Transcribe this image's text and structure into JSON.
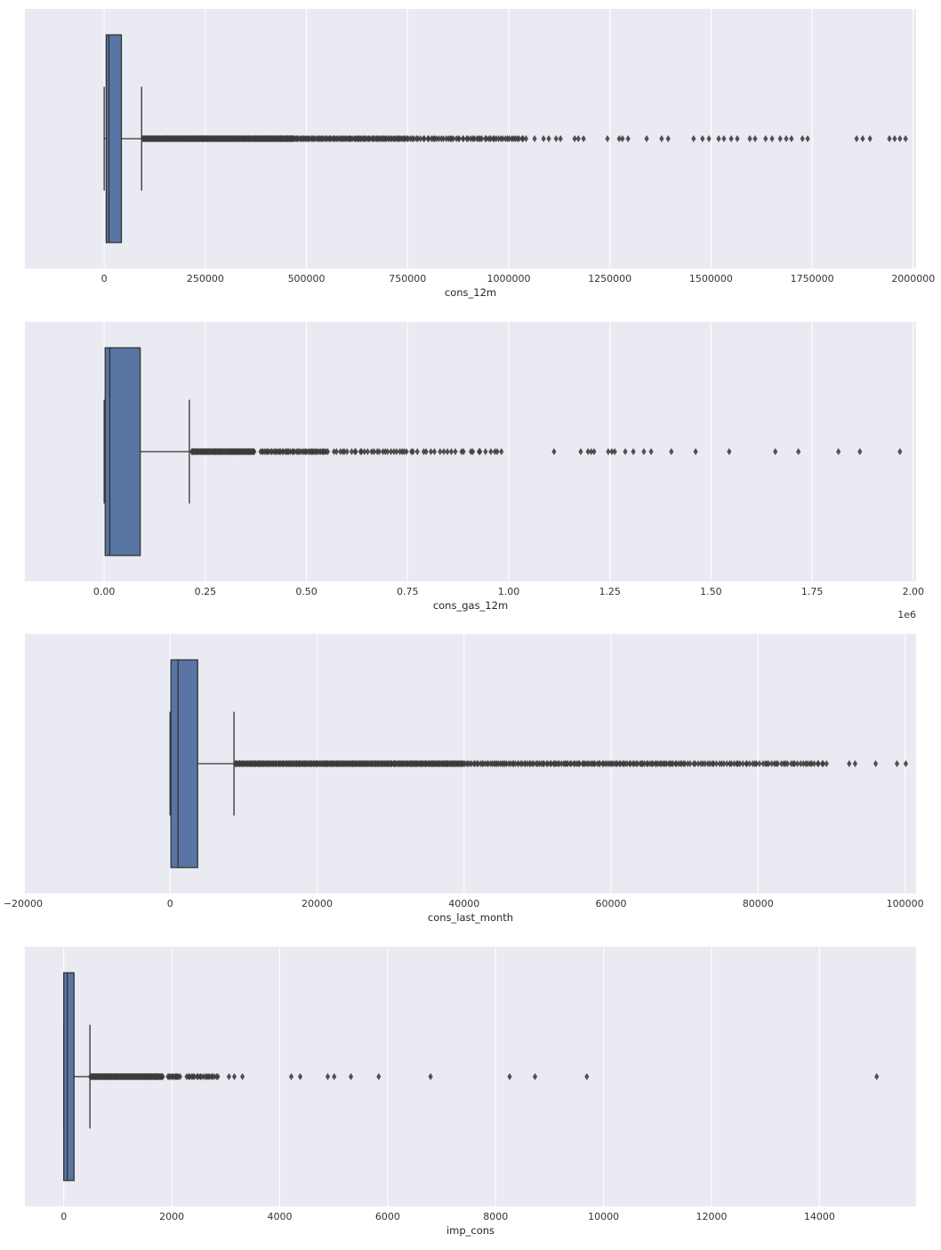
{
  "figure": {
    "background": "#ffffff"
  },
  "style": {
    "axes_bg": "#eaeaf2",
    "grid_color": "#ffffff",
    "box_fill": "#5875a4",
    "line_color": "#333333",
    "flier_color": "#3b3b3b",
    "tick_color": "#333333",
    "label_color": "#262626"
  },
  "chart_data": [
    {
      "type": "box",
      "orientation": "horizontal",
      "xlabel": "cons_12m",
      "xlim": [
        -196000,
        2007000
      ],
      "grid": true,
      "ticks": [
        0,
        250000,
        500000,
        750000,
        1000000,
        1250000,
        1500000,
        1750000,
        2000000
      ],
      "tick_labels": [
        "0",
        "250000",
        "500000",
        "750000",
        "1000000",
        "1250000",
        "1500000",
        "1750000",
        "2000000"
      ],
      "offset_text": "",
      "box": {
        "whisker_low": 0,
        "q1": 5000,
        "median": 11700,
        "q3": 42500,
        "whisker_high": 92500
      },
      "outlier_clusters": [
        {
          "from": 95000,
          "to": 470000,
          "count": 235
        },
        {
          "from": 470000,
          "to": 750000,
          "count": 90
        },
        {
          "from": 750000,
          "to": 1045000,
          "count": 58
        }
      ],
      "outliers": [
        1064000,
        1086000,
        1099000,
        1117000,
        1128000,
        1163000,
        1172000,
        1185000,
        1244000,
        1273000,
        1281000,
        1295000,
        1341000,
        1378000,
        1394000,
        1457000,
        1479000,
        1495000,
        1519000,
        1532000,
        1550000,
        1565000,
        1596000,
        1609000,
        1635000,
        1651000,
        1671000,
        1686000,
        1699000,
        1726000,
        1739000,
        1860000,
        1875000,
        1893000,
        1941000,
        1954000,
        1967000,
        1981000
      ]
    },
    {
      "type": "box",
      "orientation": "horizontal",
      "xlabel": "cons_gas_12m",
      "xlim": [
        -196000,
        2007000
      ],
      "grid": true,
      "ticks": [
        0,
        250000,
        500000,
        750000,
        1000000,
        1250000,
        1500000,
        1750000,
        2000000
      ],
      "tick_labels": [
        "0.00",
        "0.25",
        "0.50",
        "0.75",
        "1.00",
        "1.25",
        "1.50",
        "1.75",
        "2.00"
      ],
      "offset_text": "1e6",
      "box": {
        "whisker_low": 0,
        "q1": 2400,
        "median": 13800,
        "q3": 89000,
        "whisker_high": 210500
      },
      "outlier_clusters": [
        {
          "from": 215000,
          "to": 372000,
          "count": 95
        },
        {
          "from": 385000,
          "to": 555000,
          "count": 48
        },
        {
          "from": 565000,
          "to": 775000,
          "count": 30
        },
        {
          "from": 785000,
          "to": 990000,
          "count": 20
        }
      ],
      "outliers": [
        1112000,
        1178000,
        1196000,
        1204000,
        1211000,
        1246000,
        1255000,
        1262000,
        1288000,
        1308000,
        1334000,
        1352000,
        1402000,
        1462000,
        1545000,
        1659000,
        1716000,
        1815000,
        1868000,
        1967000
      ]
    },
    {
      "type": "box",
      "orientation": "horizontal",
      "xlabel": "cons_last_month",
      "xlim": [
        -19750,
        101500
      ],
      "grid": true,
      "ticks": [
        -20000,
        0,
        20000,
        40000,
        60000,
        80000,
        100000
      ],
      "tick_labels": [
        "−20000",
        "0",
        "20000",
        "40000",
        "60000",
        "80000",
        "100000"
      ],
      "offset_text": "",
      "box": {
        "whisker_low": 0,
        "q1": 120,
        "median": 1090,
        "q3": 3750,
        "whisker_high": 8700
      },
      "outlier_clusters": [
        {
          "from": 8800,
          "to": 40000,
          "count": 270
        },
        {
          "from": 40000,
          "to": 70000,
          "count": 130
        },
        {
          "from": 70000,
          "to": 89500,
          "count": 60
        }
      ],
      "outliers": [
        92400,
        93200,
        96000,
        98900,
        100100
      ]
    },
    {
      "type": "box",
      "orientation": "horizontal",
      "xlabel": "imp_cons",
      "xlim": [
        -720,
        15790
      ],
      "grid": true,
      "ticks": [
        0,
        2000,
        4000,
        6000,
        8000,
        10000,
        12000,
        14000
      ],
      "tick_labels": [
        "0",
        "2000",
        "4000",
        "6000",
        "8000",
        "10000",
        "12000",
        "14000"
      ],
      "offset_text": "",
      "box": {
        "whisker_low": 0,
        "q1": 0,
        "median": 65,
        "q3": 190,
        "whisker_high": 485
      },
      "outlier_clusters": [
        {
          "from": 490,
          "to": 1840,
          "count": 130
        },
        {
          "from": 1915,
          "to": 2160,
          "count": 12
        },
        {
          "from": 2265,
          "to": 2870,
          "count": 20
        }
      ],
      "outliers": [
        3060,
        3160,
        3310,
        4215,
        4380,
        4890,
        5010,
        5320,
        5835,
        6795,
        8260,
        8730,
        9690,
        15060
      ]
    }
  ]
}
